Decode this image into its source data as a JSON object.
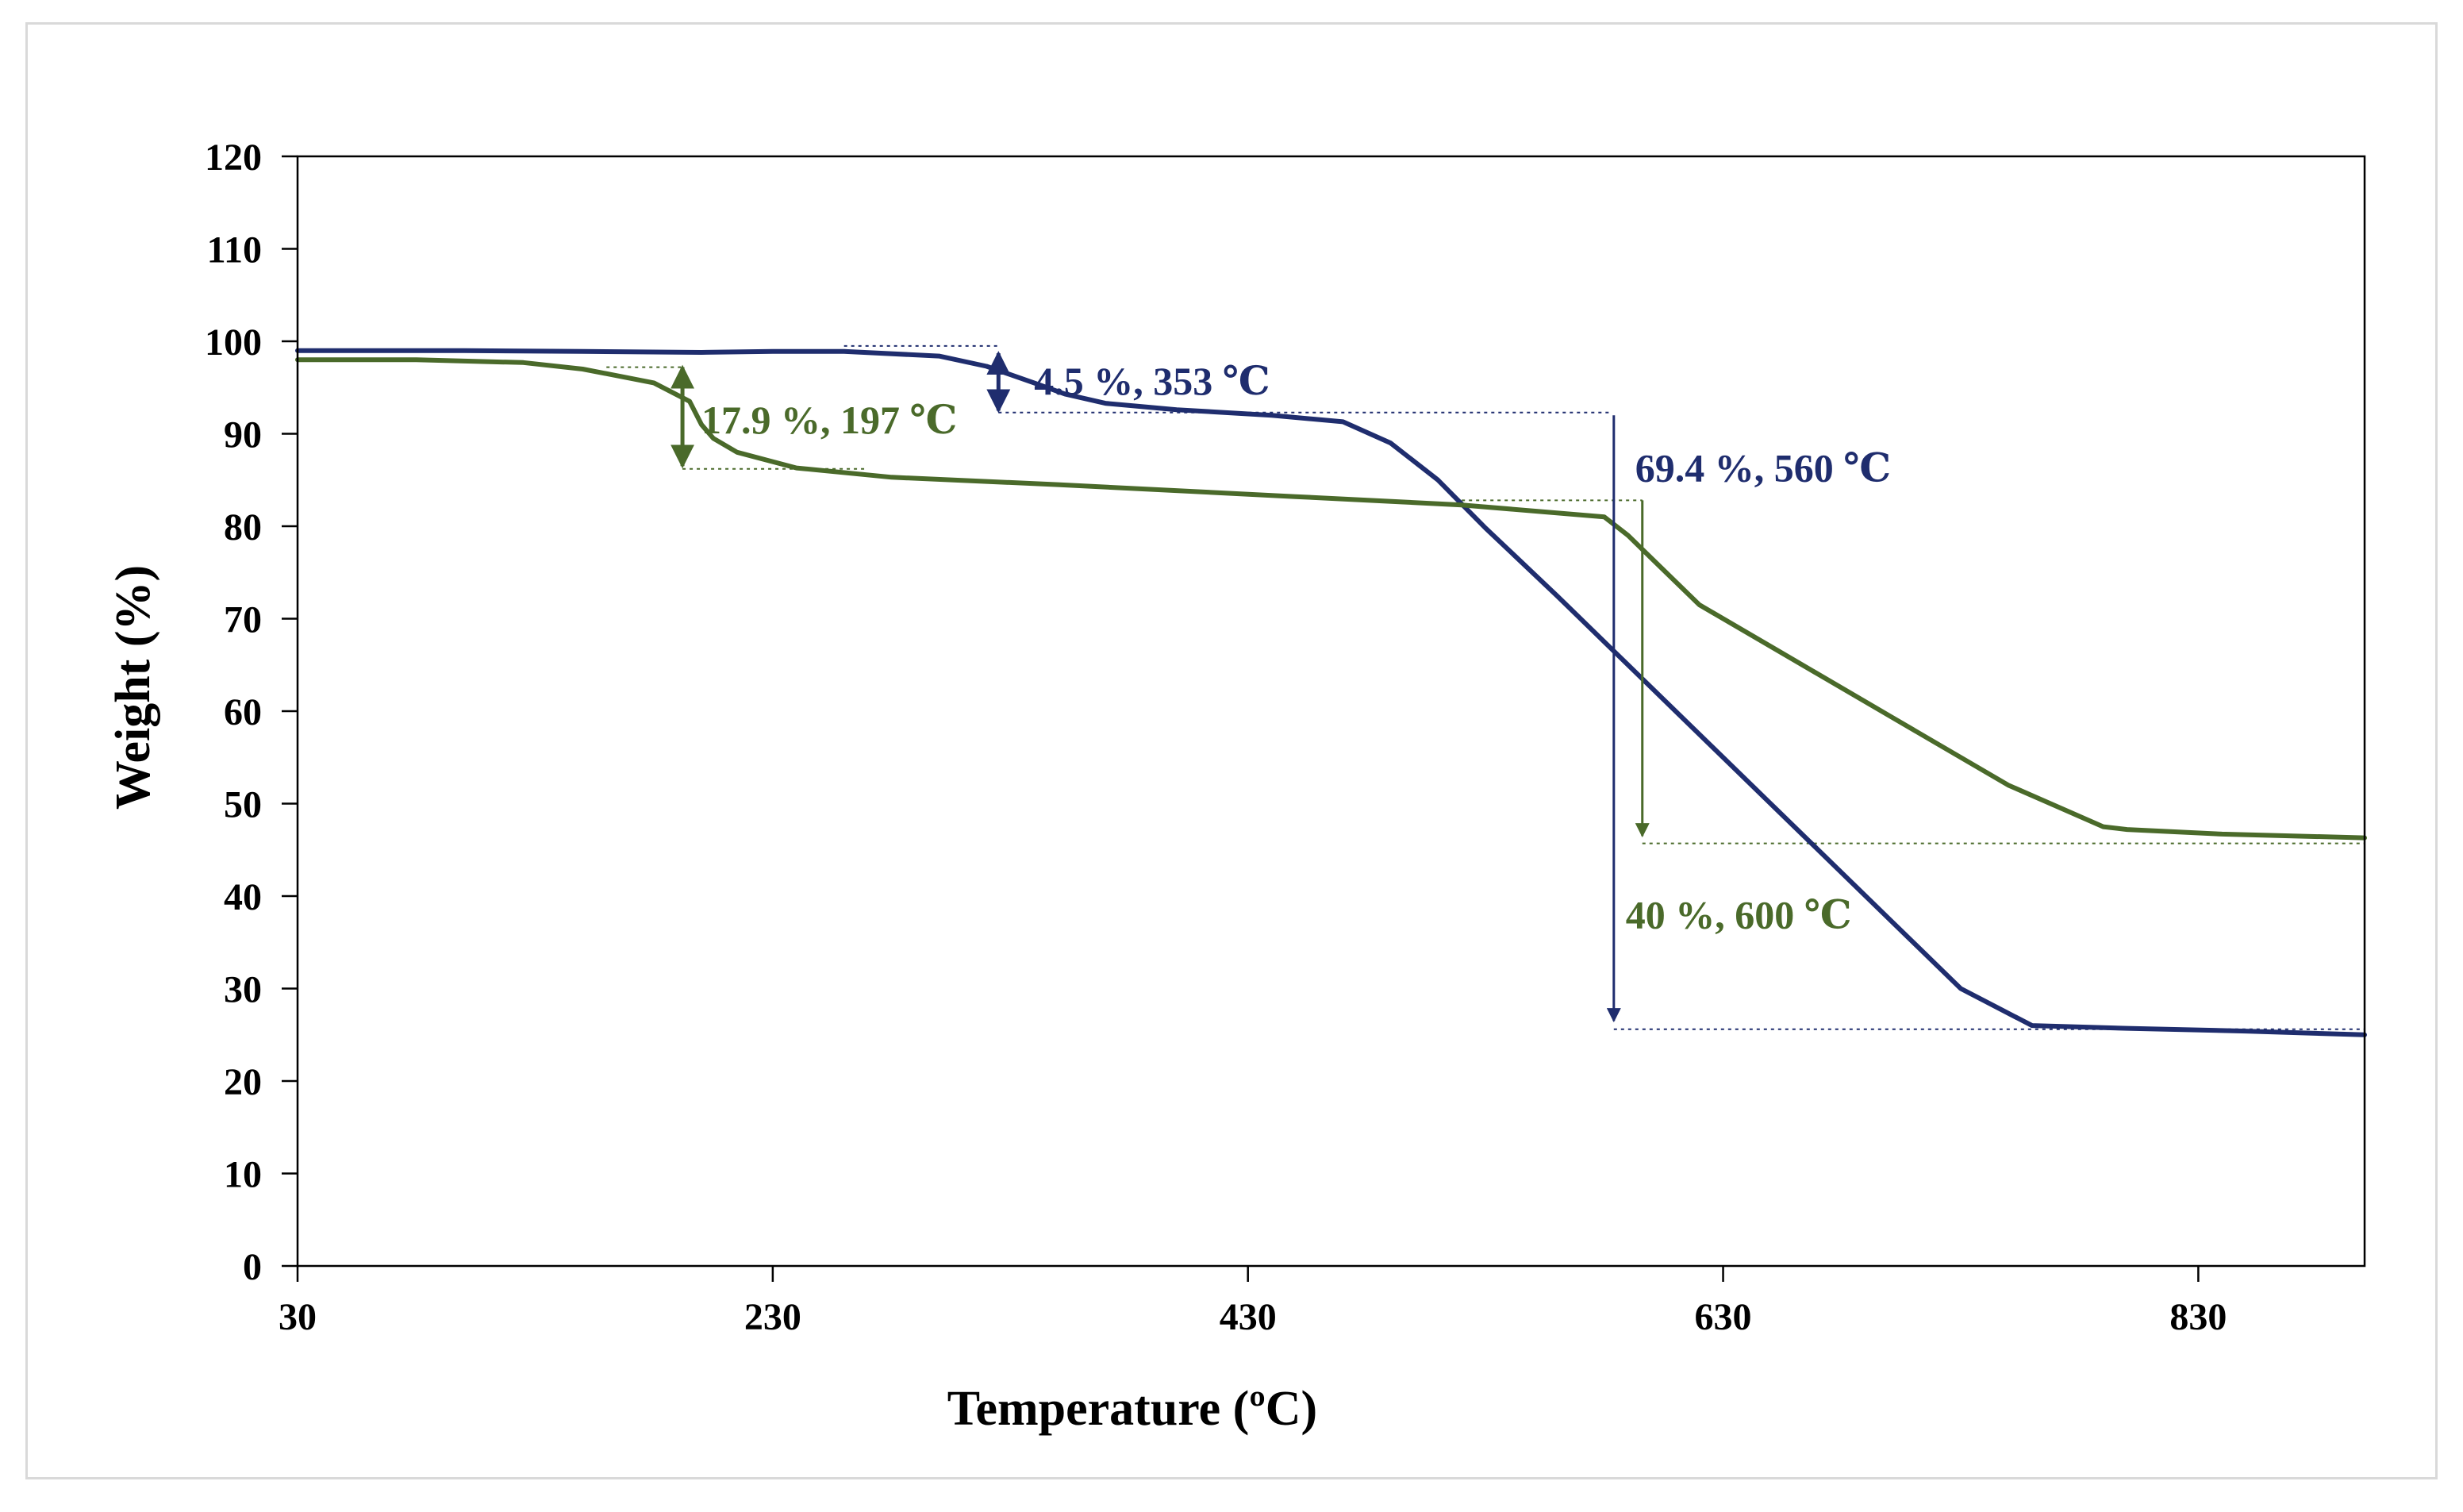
{
  "colors": {
    "series_navy": "#1f2d6e",
    "series_green": "#4a6a2a",
    "axis": "#000000",
    "frame": "#d9d9d9"
  },
  "chart_data": {
    "type": "line",
    "title": "",
    "xlabel": "Temperature (ºC)",
    "ylabel": "Weight (%)",
    "xlim": [
      30,
      900
    ],
    "ylim": [
      0,
      120
    ],
    "xticks": [
      "30",
      "230",
      "430",
      "630",
      "830"
    ],
    "xtick_values": [
      30,
      230,
      430,
      630,
      830
    ],
    "yticks": [
      "0",
      "10",
      "20",
      "30",
      "40",
      "50",
      "60",
      "70",
      "80",
      "90",
      "100",
      "110",
      "120"
    ],
    "ytick_values": [
      0,
      10,
      20,
      30,
      40,
      50,
      60,
      70,
      80,
      90,
      100,
      110,
      120
    ],
    "grid": false,
    "series": [
      {
        "name": "navy",
        "color": "#1f2d6e",
        "x": [
          30,
          100,
          150,
          200,
          230,
          260,
          300,
          320,
          340,
          353,
          370,
          400,
          440,
          470,
          490,
          510,
          530,
          560,
          600,
          650,
          700,
          730,
          760,
          800,
          850,
          900
        ],
        "y": [
          99.0,
          99.0,
          98.9,
          98.8,
          98.9,
          98.9,
          98.4,
          97.3,
          95.5,
          94.3,
          93.3,
          92.6,
          92.0,
          91.3,
          89.0,
          85.0,
          79.8,
          72.5,
          62.5,
          50.0,
          37.5,
          30.0,
          26.0,
          25.7,
          25.4,
          25.0
        ]
      },
      {
        "name": "green",
        "color": "#4a6a2a",
        "x": [
          30,
          80,
          125,
          150,
          180,
          195,
          200,
          205,
          215,
          240,
          280,
          350,
          450,
          520,
          580,
          590,
          600,
          620,
          650,
          700,
          750,
          790,
          800,
          840,
          900
        ],
        "y": [
          98.0,
          98.0,
          97.7,
          97.0,
          95.5,
          93.5,
          91.0,
          89.5,
          88.0,
          86.3,
          85.3,
          84.5,
          83.2,
          82.3,
          81.0,
          79.0,
          76.5,
          71.5,
          67.0,
          59.5,
          52.0,
          47.5,
          47.2,
          46.7,
          46.3
        ]
      }
    ],
    "annotations": [
      {
        "id": "navy-step-1",
        "text": "4.5 %, 353 ℃",
        "color": "#1f2d6e",
        "arrow_x": 325,
        "arrow_y_from": 98.7,
        "arrow_y_to": 92.5,
        "arrow_heads": "both",
        "ref_lines": [
          {
            "x1": 260,
            "x2": 325,
            "y": 99.5
          },
          {
            "x1": 325,
            "x2": 583,
            "y": 92.3
          }
        ],
        "text_x": 340,
        "text_y": 95.7
      },
      {
        "id": "green-step-1",
        "text": "17.9 %, 197 ℃",
        "color": "#4a6a2a",
        "arrow_x": 192,
        "arrow_y_from": 97.2,
        "arrow_y_to": 86.5,
        "arrow_heads": "both",
        "ref_lines": [
          {
            "x1": 160,
            "x2": 192,
            "y": 97.2
          },
          {
            "x1": 192,
            "x2": 270,
            "y": 86.2
          }
        ],
        "text_x": 200,
        "text_y": 91.5
      },
      {
        "id": "navy-step-2",
        "text": "69.4 %, 560 ℃",
        "color": "#1f2d6e",
        "arrow_x": 584,
        "arrow_y_from": 92.0,
        "arrow_y_to": 26.5,
        "arrow_heads": "end",
        "ref_lines": [
          {
            "x1": 584,
            "x2": 900,
            "y": 25.6
          }
        ],
        "text_x": 593,
        "text_y": 86.3
      },
      {
        "id": "green-step-2",
        "text": "40 %, 600 ℃",
        "color": "#4a6a2a",
        "arrow_x": 596,
        "arrow_y_from": 82.8,
        "arrow_y_to": 46.5,
        "arrow_heads": "end",
        "ref_lines": [
          {
            "x1": 520,
            "x2": 596,
            "y": 82.8
          },
          {
            "x1": 596,
            "x2": 900,
            "y": 45.7
          }
        ],
        "text_x": 589,
        "text_y": 38.0
      }
    ]
  }
}
